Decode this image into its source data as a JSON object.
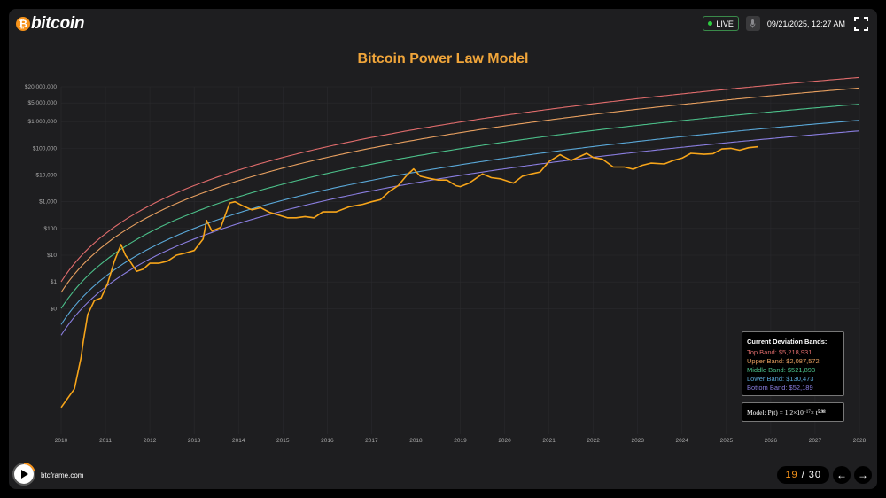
{
  "header": {
    "logo_symbol": "₿",
    "logo_text": "bitcoin",
    "live_label": "LIVE",
    "datetime": "09/21/2025, 12:27 AM",
    "mic_icon": "mic-icon",
    "fullscreen_icon": "fullscreen-icon"
  },
  "chart_data": {
    "type": "line",
    "title": "Bitcoin Power Law Model",
    "xlabel": "",
    "ylabel": "",
    "x_ticks": [
      "2010",
      "2011",
      "2012",
      "2013",
      "2014",
      "2015",
      "2016",
      "2017",
      "2018",
      "2019",
      "2020",
      "2021",
      "2022",
      "2023",
      "2024",
      "2025",
      "2026",
      "2027",
      "2028"
    ],
    "y_ticks": [
      {
        "label": "$20,000,000",
        "value": 20000000
      },
      {
        "label": "$5,000,000",
        "value": 5000000
      },
      {
        "label": "$1,000,000",
        "value": 1000000
      },
      {
        "label": "$100,000",
        "value": 100000
      },
      {
        "label": "$10,000",
        "value": 10000
      },
      {
        "label": "$1,000",
        "value": 1000
      },
      {
        "label": "$100",
        "value": 100
      },
      {
        "label": "$10",
        "value": 10
      },
      {
        "label": "$1",
        "value": 1
      },
      {
        "label": "$0",
        "value": 0.1
      }
    ],
    "y_scale": "log",
    "xlim": [
      2010,
      2028
    ],
    "ylim": [
      2e-06,
      20000000
    ],
    "grid": true,
    "bands": [
      {
        "name": "Top Band",
        "multiplier": 40,
        "color": "#e06c6c"
      },
      {
        "name": "Upper Band",
        "multiplier": 16,
        "color": "#e8a060"
      },
      {
        "name": "Middle Band",
        "multiplier": 4,
        "color": "#4cc08a"
      },
      {
        "name": "Lower Band",
        "multiplier": 1,
        "color": "#5aa8d8"
      },
      {
        "name": "Bottom Band",
        "multiplier": 0.4,
        "color": "#8a7ee0"
      }
    ],
    "price_series": {
      "color": "#f7a51a",
      "x": [
        2010.0,
        2010.3,
        2010.45,
        2010.5,
        2010.6,
        2010.75,
        2010.9,
        2011.05,
        2011.2,
        2011.35,
        2011.45,
        2011.55,
        2011.7,
        2011.85,
        2012.0,
        2012.2,
        2012.4,
        2012.6,
        2012.8,
        2013.0,
        2013.2,
        2013.28,
        2013.4,
        2013.6,
        2013.8,
        2013.92,
        2014.1,
        2014.3,
        2014.5,
        2014.7,
        2014.9,
        2015.1,
        2015.3,
        2015.5,
        2015.7,
        2015.9,
        2016.2,
        2016.5,
        2016.8,
        2017.0,
        2017.2,
        2017.4,
        2017.6,
        2017.8,
        2017.95,
        2018.1,
        2018.3,
        2018.5,
        2018.7,
        2018.9,
        2019.0,
        2019.2,
        2019.5,
        2019.7,
        2019.9,
        2020.2,
        2020.4,
        2020.6,
        2020.8,
        2021.0,
        2021.25,
        2021.5,
        2021.85,
        2022.0,
        2022.2,
        2022.45,
        2022.7,
        2022.9,
        2023.1,
        2023.3,
        2023.6,
        2023.8,
        2024.0,
        2024.2,
        2024.5,
        2024.7,
        2024.9,
        2025.1,
        2025.3,
        2025.5,
        2025.72
      ],
      "y": [
        2e-05,
        0.0001,
        0.0015,
        0.006,
        0.06,
        0.2,
        0.25,
        0.9,
        6,
        25,
        10,
        6,
        2.5,
        3,
        5,
        5,
        6,
        10,
        12,
        15,
        40,
        200,
        80,
        110,
        900,
        1000,
        700,
        500,
        600,
        400,
        320,
        250,
        250,
        280,
        250,
        420,
        420,
        650,
        800,
        1000,
        1200,
        2400,
        4000,
        10000,
        17000,
        9000,
        7500,
        6500,
        6500,
        4000,
        3700,
        5000,
        11000,
        8000,
        7200,
        5000,
        9000,
        11000,
        13000,
        32000,
        58000,
        35000,
        65000,
        45000,
        40000,
        20000,
        20000,
        16500,
        23000,
        28000,
        26000,
        35000,
        43000,
        65000,
        60000,
        63000,
        95000,
        100000,
        85000,
        105000,
        115000
      ]
    }
  },
  "bands_box": {
    "title": "Current Deviation Bands:",
    "lines": [
      {
        "text": "Top Band: $5,218,931",
        "color": "#e06c6c"
      },
      {
        "text": "Upper Band: $2,087,572",
        "color": "#e8a060"
      },
      {
        "text": "Middle Band: $521,893",
        "color": "#4cc08a"
      },
      {
        "text": "Lower Band: $130,473",
        "color": "#5aa8d8"
      },
      {
        "text": "Bottom Band: $52,189",
        "color": "#8a7ee0"
      }
    ]
  },
  "model_box": {
    "prefix": "Model: P(t) = 1.2×10",
    "coef_exp": "−17",
    "mid": " × t",
    "power_exp": "5.98"
  },
  "footer": {
    "site": "btcframe.com",
    "page_current": "19",
    "page_sep": "/",
    "page_total": "30",
    "prev_symbol": "←",
    "next_symbol": "→"
  }
}
